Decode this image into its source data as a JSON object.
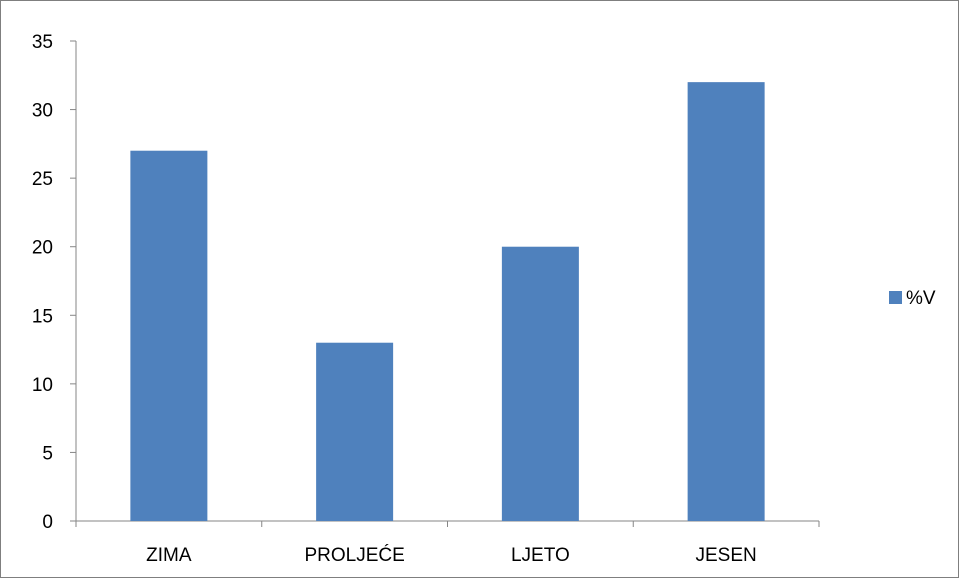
{
  "chart_data": {
    "type": "bar",
    "title": "",
    "xlabel": "",
    "ylabel": "",
    "categories": [
      "ZIMA",
      "PROLJEĆE",
      "LJETO",
      "JESEN"
    ],
    "series": [
      {
        "name": "%V",
        "color": "#4f81bd",
        "values": [
          27,
          13,
          20,
          32
        ]
      }
    ],
    "ylim": [
      0,
      35
    ],
    "yticks": [
      "0",
      "5",
      "10",
      "15",
      "20",
      "25",
      "30",
      "35"
    ],
    "grid": false,
    "legend": "right"
  }
}
